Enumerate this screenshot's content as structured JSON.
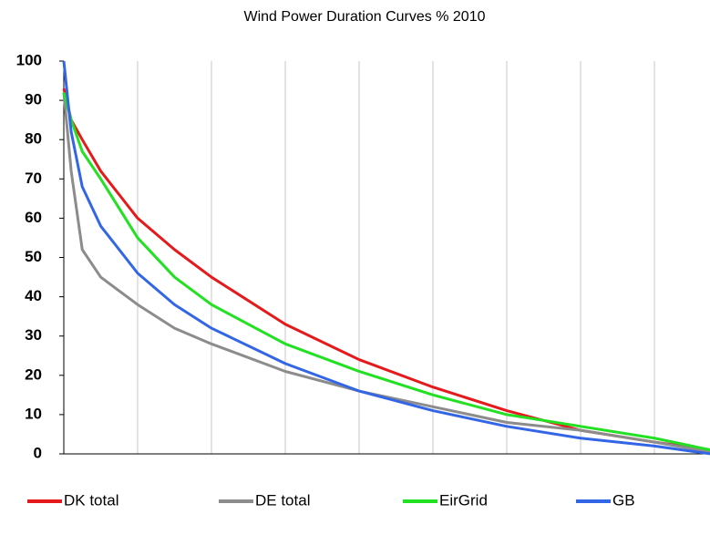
{
  "chart_data": {
    "type": "line",
    "title": "Wind Power Duration Curves % 2010",
    "x": [
      0,
      100,
      250,
      500,
      1000,
      1500,
      2000,
      3000,
      4000,
      5000,
      6000,
      7000,
      8000,
      8760
    ],
    "xlim": [
      0,
      8760
    ],
    "xticks": [
      1000,
      2000,
      3000,
      4000,
      5000,
      6000,
      7000,
      8000
    ],
    "show_xtick_labels": false,
    "ylim": [
      0,
      100
    ],
    "yticks": [
      0,
      10,
      20,
      30,
      40,
      50,
      60,
      70,
      80,
      90,
      100
    ],
    "grid": "x",
    "legend": "bottom",
    "series": [
      {
        "name": "DK total",
        "color": "#e41a1c",
        "values": [
          93,
          85,
          80,
          72,
          60,
          52,
          45,
          33,
          24,
          17,
          11,
          6,
          3,
          1
        ]
      },
      {
        "name": "DE total",
        "color": "#8c8c8c",
        "values": [
          92,
          72,
          52,
          45,
          38,
          32,
          28,
          21,
          16,
          12,
          8,
          6,
          3,
          0.5
        ]
      },
      {
        "name": "EirGrid",
        "color": "#22e022",
        "values": [
          92,
          85,
          77,
          70,
          55,
          45,
          38,
          28,
          21,
          15,
          10,
          7,
          4,
          1
        ]
      },
      {
        "name": "GB",
        "color": "#3366e6",
        "values": [
          100,
          82,
          68,
          58,
          46,
          38,
          32,
          23,
          16,
          11,
          7,
          4,
          2,
          0
        ]
      }
    ]
  }
}
